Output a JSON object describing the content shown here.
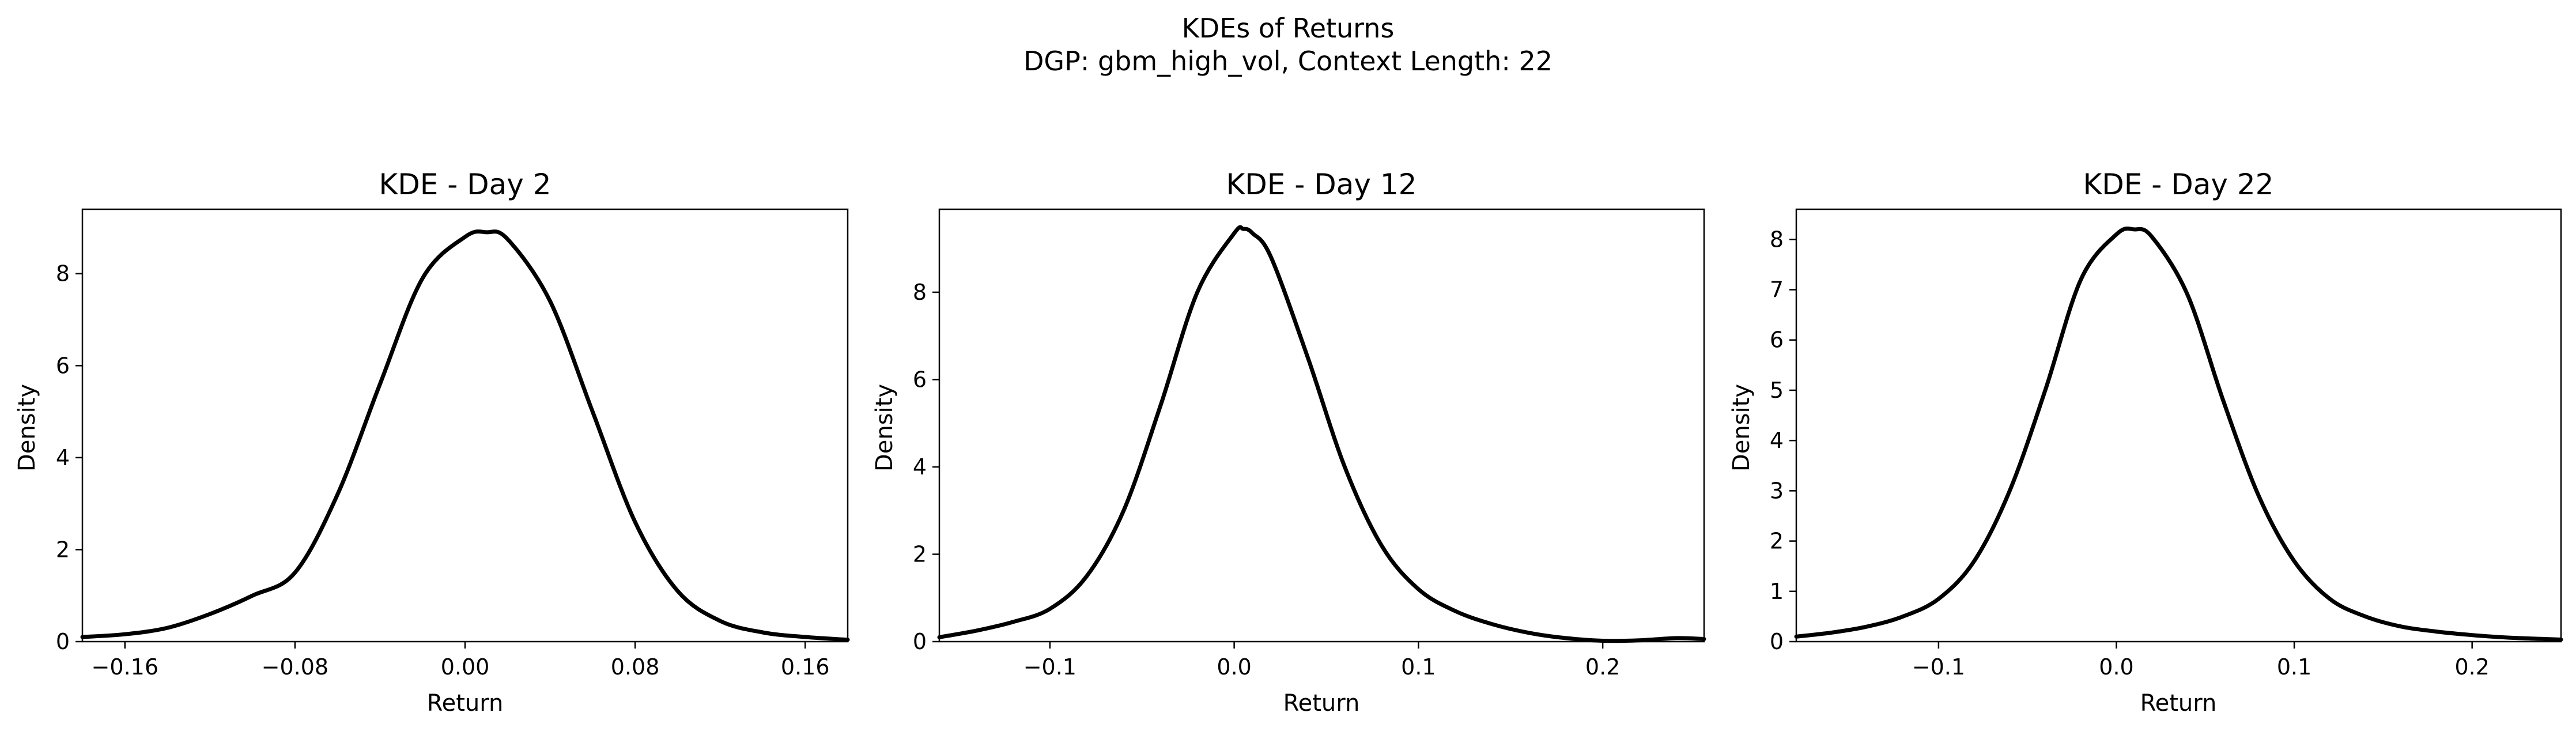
{
  "figure": {
    "title_line1": "KDEs of Returns",
    "title_line2": "DGP: gbm_high_vol, Context Length: 22"
  },
  "chart_data": [
    {
      "type": "line",
      "title": "KDE - Day 2",
      "xlabel": "Return",
      "ylabel": "Density",
      "xlim": [
        -0.18,
        0.18
      ],
      "ylim": [
        0,
        9.4
      ],
      "xticks": [
        -0.16,
        -0.08,
        0.0,
        0.08,
        0.16
      ],
      "xtick_labels": [
        "−0.16",
        "−0.08",
        "0.00",
        "0.08",
        "0.16"
      ],
      "yticks": [
        0,
        2,
        4,
        6,
        8
      ],
      "ytick_labels": [
        "0",
        "2",
        "4",
        "6",
        "8"
      ],
      "grid": false,
      "line_color": "#000000",
      "series": [
        {
          "x": [
            -0.18,
            -0.16,
            -0.14,
            -0.12,
            -0.1,
            -0.08,
            -0.06,
            -0.04,
            -0.02,
            0.0,
            0.01,
            0.02,
            0.04,
            0.06,
            0.08,
            0.1,
            0.12,
            0.14,
            0.16,
            0.18
          ],
          "y": [
            0.1,
            0.16,
            0.3,
            0.6,
            1.0,
            1.5,
            3.2,
            5.6,
            7.9,
            8.8,
            8.9,
            8.75,
            7.4,
            5.0,
            2.6,
            1.1,
            0.45,
            0.2,
            0.1,
            0.04
          ]
        }
      ]
    },
    {
      "type": "line",
      "title": "KDE - Day 12",
      "xlabel": "Return",
      "ylabel": "Density",
      "xlim": [
        -0.16,
        0.255
      ],
      "ylim": [
        0,
        9.9
      ],
      "xticks": [
        -0.1,
        0.0,
        0.1,
        0.2
      ],
      "xtick_labels": [
        "−0.1",
        "0.0",
        "0.1",
        "0.2"
      ],
      "yticks": [
        0,
        2,
        4,
        6,
        8
      ],
      "ytick_labels": [
        "0",
        "2",
        "4",
        "6",
        "8"
      ],
      "grid": false,
      "line_color": "#000000",
      "series": [
        {
          "x": [
            -0.16,
            -0.14,
            -0.12,
            -0.1,
            -0.08,
            -0.06,
            -0.04,
            -0.02,
            0.0,
            0.005,
            0.01,
            0.02,
            0.04,
            0.06,
            0.08,
            0.1,
            0.12,
            0.14,
            0.16,
            0.18,
            0.2,
            0.22,
            0.24,
            0.255
          ],
          "y": [
            0.1,
            0.25,
            0.45,
            0.75,
            1.5,
            3.0,
            5.4,
            8.0,
            9.35,
            9.45,
            9.35,
            8.8,
            6.5,
            4.0,
            2.2,
            1.2,
            0.7,
            0.4,
            0.2,
            0.08,
            0.02,
            0.03,
            0.08,
            0.06
          ]
        }
      ]
    },
    {
      "type": "line",
      "title": "KDE - Day 22",
      "xlabel": "Return",
      "ylabel": "Density",
      "xlim": [
        -0.18,
        0.25
      ],
      "ylim": [
        0,
        8.6
      ],
      "xticks": [
        -0.1,
        0.0,
        0.1,
        0.2
      ],
      "xtick_labels": [
        "−0.1",
        "0.0",
        "0.1",
        "0.2"
      ],
      "yticks": [
        0,
        1,
        2,
        3,
        4,
        5,
        6,
        7,
        8
      ],
      "ytick_labels": [
        "0",
        "1",
        "2",
        "3",
        "4",
        "5",
        "6",
        "7",
        "8"
      ],
      "grid": false,
      "line_color": "#000000",
      "series": [
        {
          "x": [
            -0.18,
            -0.16,
            -0.14,
            -0.12,
            -0.1,
            -0.08,
            -0.06,
            -0.04,
            -0.02,
            0.0,
            0.01,
            0.02,
            0.04,
            0.06,
            0.08,
            0.1,
            0.12,
            0.14,
            0.16,
            0.18,
            0.2,
            0.22,
            0.25
          ],
          "y": [
            0.1,
            0.18,
            0.3,
            0.5,
            0.85,
            1.6,
            3.0,
            5.0,
            7.2,
            8.1,
            8.2,
            8.05,
            6.9,
            4.8,
            2.9,
            1.6,
            0.85,
            0.5,
            0.3,
            0.2,
            0.13,
            0.08,
            0.04
          ]
        }
      ]
    }
  ]
}
